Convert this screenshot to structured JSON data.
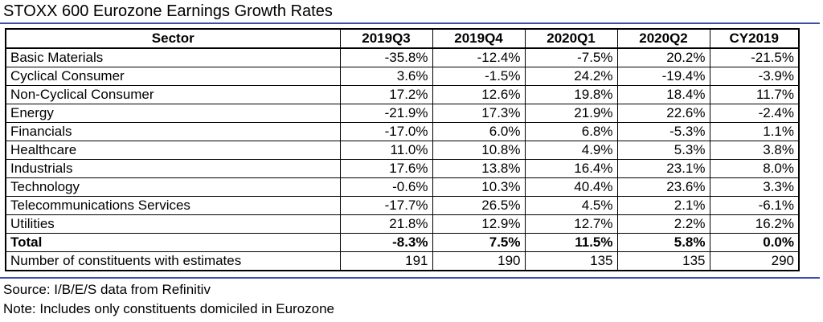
{
  "title": "STOXX 600 Eurozone Earnings Growth Rates",
  "table": {
    "headers": [
      "Sector",
      "2019Q3",
      "2019Q4",
      "2020Q1",
      "2020Q2",
      "CY2019"
    ],
    "rows": [
      [
        "Basic Materials",
        "-35.8%",
        "-12.4%",
        "-7.5%",
        "20.2%",
        "-21.5%"
      ],
      [
        "Cyclical Consumer",
        "3.6%",
        "-1.5%",
        "24.2%",
        "-19.4%",
        "-3.9%"
      ],
      [
        "Non-Cyclical Consumer",
        "17.2%",
        "12.6%",
        "19.8%",
        "18.4%",
        "11.7%"
      ],
      [
        "Energy",
        "-21.9%",
        "17.3%",
        "21.9%",
        "22.6%",
        "-2.4%"
      ],
      [
        "Financials",
        "-17.0%",
        "6.0%",
        "6.8%",
        "-5.3%",
        "1.1%"
      ],
      [
        "Healthcare",
        "11.0%",
        "10.8%",
        "4.9%",
        "5.3%",
        "3.8%"
      ],
      [
        "Industrials",
        "17.6%",
        "13.8%",
        "16.4%",
        "23.1%",
        "8.0%"
      ],
      [
        "Technology",
        "-0.6%",
        "10.3%",
        "40.4%",
        "23.6%",
        "3.3%"
      ],
      [
        "Telecommunications Services",
        "-17.7%",
        "26.5%",
        "4.5%",
        "2.1%",
        "-6.1%"
      ],
      [
        "Utilities",
        "21.8%",
        "12.9%",
        "12.7%",
        "2.2%",
        "16.2%"
      ]
    ],
    "total": [
      "Total",
      "-8.3%",
      "7.5%",
      "11.5%",
      "5.8%",
      "0.0%"
    ],
    "constituents": [
      "Number of constituents with estimates",
      "191",
      "190",
      "135",
      "135",
      "290"
    ]
  },
  "footer": {
    "source": "Source: I/B/E/S data from Refinitiv",
    "note": "Note: Includes only constituents domiciled in Eurozone"
  },
  "colors": {
    "rule": "#3c4ea6",
    "border": "#000000"
  }
}
